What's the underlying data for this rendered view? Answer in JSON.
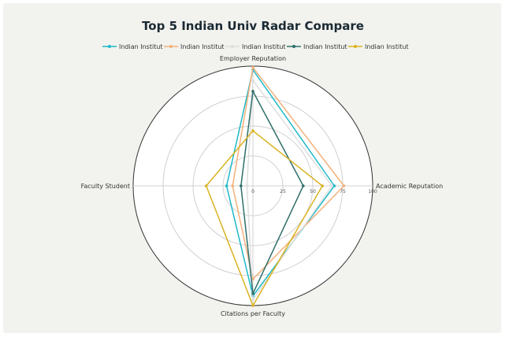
{
  "colors": {
    "background": "#f2f2ee",
    "plot_background": "#ffffff",
    "grid": "#d0d0d0",
    "outer_ring": "#333333",
    "title": "#1a2a33"
  },
  "chart_data": {
    "type": "radar",
    "title": "Top 5 Indian Univ Radar Compare",
    "axes": [
      "Academic Reputation",
      "Employer Reputation",
      "Faculty Student",
      "Citations per Faculty"
    ],
    "radial_ticks": [
      0,
      25,
      50,
      75,
      100
    ],
    "radial_range": [
      0,
      100
    ],
    "legend_position": "top-center",
    "grid": true,
    "series": [
      {
        "name": "Indian Institut",
        "color": "#1fb8c8",
        "marker": "circle",
        "values": [
          68,
          97,
          22,
          92
        ]
      },
      {
        "name": "Indian Institut",
        "color": "#f4b07a",
        "marker": "circle",
        "values": [
          76,
          99,
          17,
          78
        ]
      },
      {
        "name": "Indian Institut",
        "color": "#dedede",
        "marker": "circle",
        "values": [
          66,
          88,
          5,
          95
        ]
      },
      {
        "name": "Indian Institut",
        "color": "#2f6f6a",
        "marker": "circle",
        "values": [
          42,
          79,
          10,
          90
        ]
      },
      {
        "name": "Indian Institut",
        "color": "#d9b321",
        "marker": "circle",
        "values": [
          58,
          46,
          39,
          100
        ]
      }
    ]
  }
}
